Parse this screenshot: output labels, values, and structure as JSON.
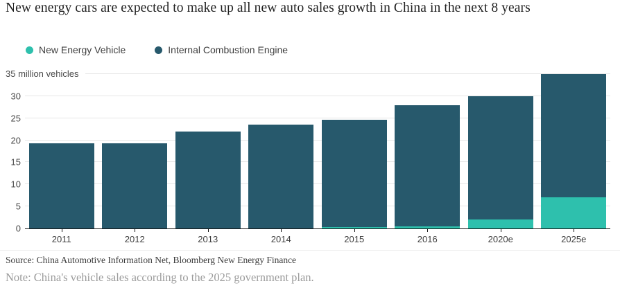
{
  "title": "New energy cars are expected to make up all new auto sales growth in China in the next 8 years",
  "legend": {
    "items": [
      {
        "label": "New Energy Vehicle",
        "color": "#2ec0ad"
      },
      {
        "label": "Internal Combustion Engine",
        "color": "#27596c"
      }
    ]
  },
  "chart_data": {
    "type": "bar",
    "stacked": true,
    "title": "New energy cars are expected to make up all new auto sales growth in China in the next 8 years",
    "categories": [
      "2011",
      "2012",
      "2013",
      "2014",
      "2015",
      "2016",
      "2020e",
      "2025e"
    ],
    "series": [
      {
        "name": "New Energy Vehicle",
        "color": "#2ec0ad",
        "values": [
          0,
          0,
          0,
          0,
          0.3,
          0.5,
          2,
          7
        ]
      },
      {
        "name": "Internal Combustion Engine",
        "color": "#27596c",
        "values": [
          19.3,
          19.3,
          22,
          23.5,
          24.3,
          27.5,
          28,
          28
        ]
      }
    ],
    "totals": [
      19.3,
      19.3,
      22,
      23.5,
      24.6,
      28,
      30,
      35
    ],
    "ylabel_top": "35 million vehicles",
    "yticks": [
      0,
      5,
      10,
      15,
      20,
      25,
      30,
      35
    ],
    "ylim": [
      0,
      35
    ],
    "grid": true,
    "gridline_color": "#e6e6e6",
    "axis_color": "#111111",
    "legend_position": "top-left"
  },
  "footer": {
    "source": "Source: China Automotive Information Net, Bloomberg New Energy Finance",
    "note": "Note: China's vehicle sales according to the 2025 government plan."
  }
}
